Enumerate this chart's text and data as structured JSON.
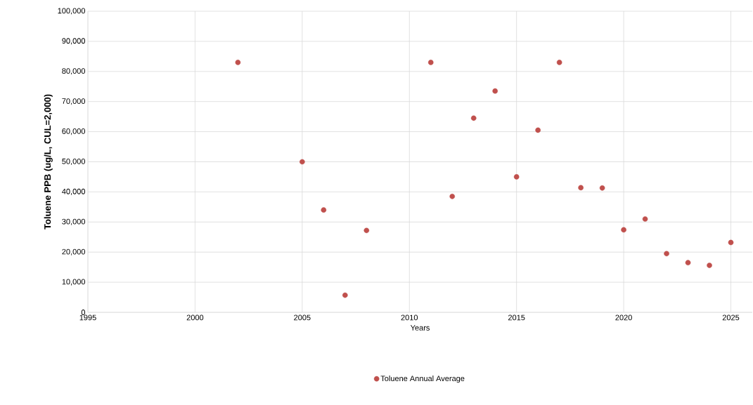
{
  "chart_data": {
    "type": "scatter",
    "xlabel": "Years",
    "ylabel": "Toluene PPB (ug/L, CUL=2,000)",
    "x": [
      2002,
      2005,
      2006,
      2007,
      2008,
      2011,
      2012,
      2013,
      2014,
      2015,
      2016,
      2017,
      2018,
      2019,
      2020,
      2021,
      2022,
      2023,
      2024,
      2025
    ],
    "series": [
      {
        "name": "Toluene Annual Average",
        "color": "#c0504d",
        "values": [
          83000,
          50000,
          34000,
          5700,
          27200,
          83000,
          38500,
          64500,
          73500,
          45000,
          60500,
          83000,
          41400,
          41300,
          27400,
          31000,
          19500,
          16500,
          15600,
          23200
        ]
      }
    ],
    "xlim": [
      1995,
      2026
    ],
    "ylim": [
      0,
      100000
    ],
    "xticks": [
      1995,
      2000,
      2005,
      2010,
      2015,
      2020,
      2025
    ],
    "yticks": [
      {
        "value": 0,
        "label": "0"
      },
      {
        "value": 10000,
        "label": "10,000"
      },
      {
        "value": 20000,
        "label": "20,000"
      },
      {
        "value": 30000,
        "label": "30,000"
      },
      {
        "value": 40000,
        "label": "40,000"
      },
      {
        "value": 50000,
        "label": "50,000"
      },
      {
        "value": 60000,
        "label": "60,000"
      },
      {
        "value": 70000,
        "label": "70,000"
      },
      {
        "value": 80000,
        "label": "80,000"
      },
      {
        "value": 90000,
        "label": "90,000"
      },
      {
        "value": 100000,
        "label": "100,000"
      }
    ],
    "grid": true,
    "legend": "bottom",
    "marker": "circle"
  }
}
